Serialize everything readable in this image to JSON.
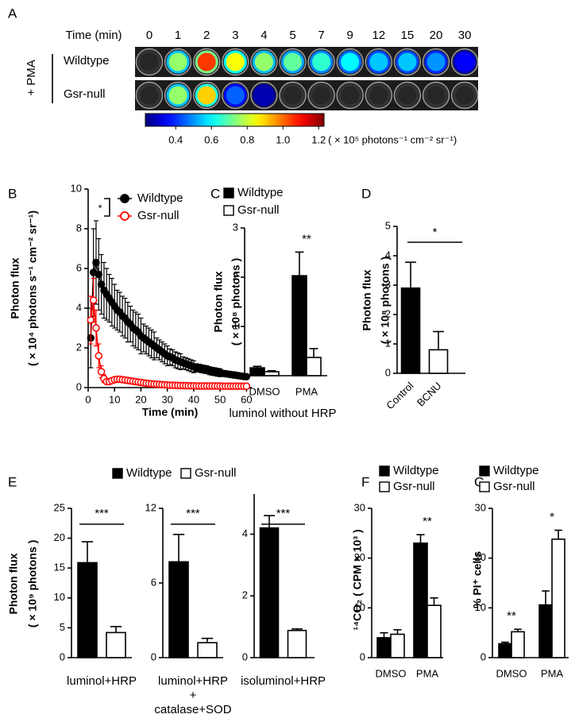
{
  "chart_data": [
    {
      "panel": "A",
      "type": "well-image",
      "xlabel": "Time (min)",
      "x": [
        0,
        1,
        2,
        3,
        4,
        5,
        7,
        9,
        12,
        15,
        20,
        30
      ],
      "treatment": "+ PMA",
      "series": [
        {
          "name": "Wildtype",
          "values": [
            0.1,
            0.75,
            1.05,
            0.85,
            0.75,
            0.7,
            0.65,
            0.6,
            0.55,
            0.55,
            0.5,
            0.35
          ]
        },
        {
          "name": "Gsr-null",
          "values": [
            0.1,
            0.75,
            0.9,
            0.45,
            0.28,
            0.15,
            0.15,
            0.15,
            0.15,
            0.15,
            0.15,
            0.15
          ]
        }
      ],
      "colorbar": {
        "lim": [
          0.23,
          1.23
        ],
        "ticks": [
          0.4,
          0.6,
          0.8,
          {
            "value": 1.0,
            "label": "1.0"
          },
          1.2
        ],
        "label": "( × 10⁵ photons⁻¹ cm⁻² sr⁻¹)",
        "colormap": "jet"
      }
    },
    {
      "panel": "B",
      "type": "line",
      "xlabel": "Time (min)",
      "ylabel": [
        "Photon flux",
        "( × 10⁴ photons s⁻¹ cm⁻² sr⁻¹)"
      ],
      "x": [
        1,
        2,
        3,
        4,
        5,
        6,
        7,
        8,
        9,
        10,
        11,
        12,
        13,
        14,
        15,
        16,
        17,
        18,
        19,
        20,
        21,
        22,
        23,
        24,
        25,
        26,
        27,
        28,
        29,
        30,
        31,
        32,
        33,
        34,
        35,
        36,
        37,
        38,
        39,
        40,
        41,
        42,
        43,
        44,
        45,
        46,
        47,
        48,
        49,
        50,
        51,
        52,
        53,
        54,
        55,
        56,
        57,
        58,
        59,
        60
      ],
      "series": [
        {
          "name": "Wildtype",
          "color": "#000000",
          "marker": "filled",
          "values": [
            2.5,
            5.8,
            6.3,
            5.7,
            5.2,
            4.9,
            4.7,
            4.5,
            4.3,
            4.1,
            3.9,
            3.8,
            3.6,
            3.5,
            3.3,
            3.2,
            3.0,
            2.9,
            2.8,
            2.6,
            2.5,
            2.4,
            2.3,
            2.2,
            2.1,
            2.0,
            1.9,
            1.8,
            1.7,
            1.6,
            1.55,
            1.5,
            1.4,
            1.35,
            1.3,
            1.25,
            1.2,
            1.15,
            1.1,
            1.05,
            1.0,
            0.98,
            0.95,
            0.92,
            0.9,
            0.85,
            0.82,
            0.8,
            0.77,
            0.75,
            0.72,
            0.7,
            0.68,
            0.66,
            0.64,
            0.62,
            0.6,
            0.58,
            0.56,
            0.55
          ],
          "errors": [
            1.5,
            2.2,
            2.1,
            1.8,
            1.5,
            1.4,
            1.3,
            1.2,
            1.2,
            1.1,
            1.0,
            1.0,
            1.0,
            1.0,
            1.0,
            0.9,
            0.9,
            0.9,
            0.9,
            0.9,
            0.7,
            0.7,
            0.7,
            0.7,
            0.7,
            0.5,
            0.5,
            0.5,
            0.5,
            0.5,
            0.4,
            0.4,
            0.4,
            0.4,
            0.4,
            0.3,
            0.3,
            0.3,
            0.3,
            0.3,
            0.2,
            0.2,
            0.2,
            0.2,
            0.2,
            0.2,
            0.2,
            0.2,
            0.2,
            0.2,
            0.1,
            0.1,
            0.1,
            0.1,
            0.1,
            0.1,
            0.1,
            0.1,
            0.1,
            0.1
          ]
        },
        {
          "name": "Gsr-null",
          "color": "#ff0000",
          "marker": "open",
          "values": [
            3.4,
            4.4,
            3.0,
            1.6,
            0.8,
            0.45,
            0.3,
            0.3,
            0.35,
            0.4,
            0.42,
            0.42,
            0.4,
            0.38,
            0.36,
            0.34,
            0.32,
            0.3,
            0.28,
            0.26,
            0.24,
            0.22,
            0.2,
            0.19,
            0.18,
            0.17,
            0.16,
            0.15,
            0.14,
            0.13,
            0.12,
            0.12,
            0.11,
            0.11,
            0.1,
            0.1,
            0.1,
            0.09,
            0.09,
            0.09,
            0.08,
            0.08,
            0.08,
            0.08,
            0.08,
            0.08,
            0.08,
            0.08,
            0.08,
            0.08,
            0.07,
            0.07,
            0.07,
            0.07,
            0.07,
            0.07,
            0.07,
            0.07,
            0.07,
            0.07
          ],
          "errors": [
            1.2,
            1.1,
            0.9,
            0.6,
            0.3,
            0.2,
            0.1,
            0.05,
            0.05,
            0.05,
            0.05,
            0.05,
            0.05,
            0.05,
            0.05,
            0.05,
            0.05,
            0.05,
            0.05,
            0.05,
            0.05,
            0.05,
            0.05,
            0.05,
            0.05,
            0.05,
            0.05,
            0.05,
            0.05,
            0.05,
            0.05,
            0.05,
            0.05,
            0.05,
            0.05,
            0.05,
            0.05,
            0.05,
            0.05,
            0.05,
            0.05,
            0.05,
            0.05,
            0.05,
            0.05,
            0.05,
            0.05,
            0.05,
            0.05,
            0.05,
            0.05,
            0.05,
            0.05,
            0.05,
            0.05,
            0.05,
            0.05,
            0.05,
            0.05,
            0.05
          ]
        }
      ],
      "xlim": [
        0,
        62
      ],
      "ylim": [
        0,
        10
      ],
      "xticks": [
        0,
        10,
        20,
        30,
        40,
        50,
        60
      ],
      "yticks": [
        0,
        2,
        4,
        6,
        8,
        10
      ],
      "significance": "*"
    },
    {
      "panel": "C",
      "type": "bar",
      "categories": [
        "DMSO",
        "PMA"
      ],
      "series": [
        {
          "name": "Wildtype",
          "color": "#000000",
          "values": [
            0.16,
            2.03
          ],
          "errors": [
            0.03,
            0.48
          ]
        },
        {
          "name": "Gsr-null",
          "color": "#ffffff",
          "values": [
            0.08,
            0.37
          ],
          "errors": [
            0.02,
            0.18
          ]
        }
      ],
      "ylim": [
        0,
        3
      ],
      "yticks": [
        0,
        1,
        2,
        3
      ],
      "ylabel": [
        "Photon flux",
        "( × 10⁸ photons )"
      ],
      "xlabel": "luminol without HRP",
      "significance": [
        null,
        "**"
      ]
    },
    {
      "panel": "D",
      "type": "bar",
      "categories": [
        "Control",
        "BCNU"
      ],
      "values": [
        2.9,
        0.8
      ],
      "errors": [
        0.88,
        0.62
      ],
      "colors": [
        "#000000",
        "#ffffff"
      ],
      "ylim": [
        0,
        5
      ],
      "yticks": [
        0,
        1,
        2,
        3,
        4,
        5
      ],
      "ylabel": [
        "Photon flux",
        "( × 10⁸ photons )"
      ],
      "significance": "*"
    },
    {
      "panel": "E",
      "type": "bar-panels",
      "series": [
        {
          "name": "Wildtype",
          "color": "#000000"
        },
        {
          "name": "Gsr-null",
          "color": "#ffffff"
        }
      ],
      "ylabel": [
        "Photon flux",
        "( × 10⁹ photons )"
      ],
      "subplots": [
        {
          "values": [
            15.9,
            4.2
          ],
          "errors": [
            3.5,
            1.0
          ],
          "ylim": [
            0,
            25
          ],
          "yticks": [
            0,
            5,
            10,
            15,
            20,
            25
          ],
          "xlabel": [
            "luminol+HRP"
          ],
          "significance": "***"
        },
        {
          "values": [
            7.7,
            1.2
          ],
          "errors": [
            2.2,
            0.35
          ],
          "ylim": [
            0,
            12
          ],
          "yticks": [
            0,
            6,
            12
          ],
          "xlabel": [
            "luminol+HRP",
            "+",
            "catalase+SOD"
          ],
          "significance": "***"
        },
        {
          "values": [
            4.2,
            0.88
          ],
          "errors": [
            0.4,
            0.05
          ],
          "ylim": [
            0,
            5.3
          ],
          "yticks": [
            0,
            2,
            4
          ],
          "xlabel": [
            "isoluminol+HRP"
          ],
          "significance": "***"
        }
      ]
    },
    {
      "panel": "F",
      "type": "bar",
      "categories": [
        "DMSO",
        "PMA"
      ],
      "series": [
        {
          "name": "Wildtype",
          "color": "#000000",
          "values": [
            4.0,
            23.0
          ],
          "errors": [
            1.0,
            1.7
          ]
        },
        {
          "name": "Gsr-null",
          "color": "#ffffff",
          "values": [
            4.7,
            10.5
          ],
          "errors": [
            0.9,
            1.5
          ]
        }
      ],
      "ylim": [
        0,
        30
      ],
      "yticks": [
        0,
        10,
        20,
        30
      ],
      "ylabel": [
        "¹⁴CO₂ ( CPM × 10³ )"
      ],
      "significance": [
        null,
        "**"
      ]
    },
    {
      "panel": "G",
      "type": "bar",
      "categories": [
        "DMSO",
        "PMA"
      ],
      "series": [
        {
          "name": "Wildtype",
          "color": "#000000",
          "values": [
            2.8,
            10.6
          ],
          "errors": [
            0.3,
            2.8
          ]
        },
        {
          "name": "Gsr-null",
          "color": "#ffffff",
          "values": [
            5.2,
            23.8
          ],
          "errors": [
            0.5,
            1.8
          ]
        }
      ],
      "ylim": [
        0,
        30
      ],
      "yticks": [
        0,
        10,
        20,
        30
      ],
      "ylabel": [
        "% PI⁺ cells"
      ],
      "significance": [
        "**",
        "*"
      ]
    }
  ]
}
